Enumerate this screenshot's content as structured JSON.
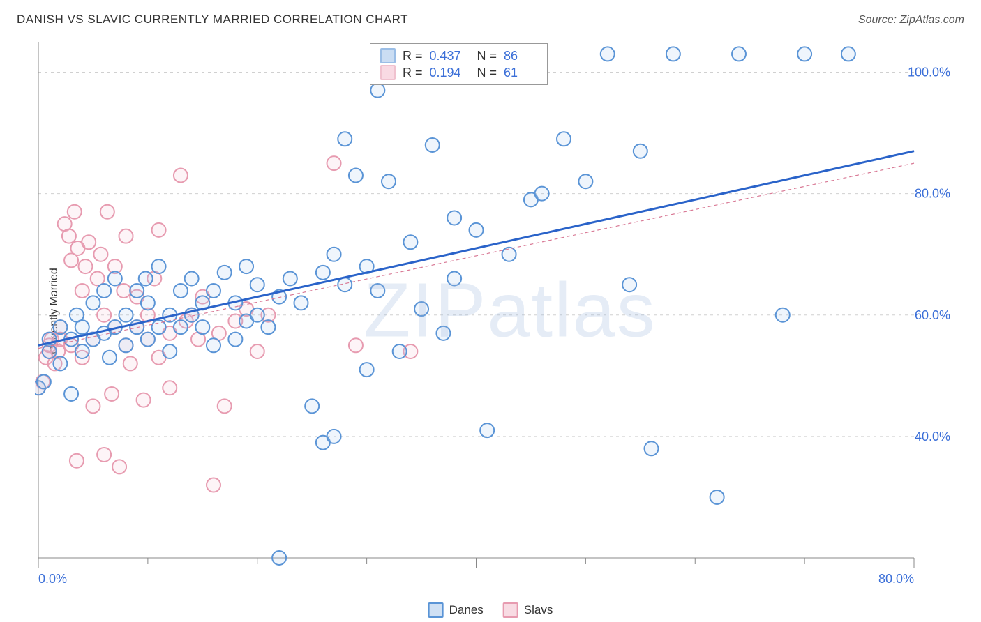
{
  "title": "DANISH VS SLAVIC CURRENTLY MARRIED CORRELATION CHART",
  "source": "Source: ZipAtlas.com",
  "ylabel": "Currently Married",
  "watermark": "ZIPatlas",
  "chart": {
    "type": "scatter",
    "background_color": "#ffffff",
    "grid_color": "#d0d0d0",
    "axis_color": "#888888",
    "tick_label_color": "#3b6fd8",
    "tick_fontsize": 18,
    "xlim": [
      0,
      80
    ],
    "ylim": [
      20,
      105
    ],
    "x_ticks_major": [
      0,
      40,
      80
    ],
    "x_ticks_minor": [
      10,
      20,
      30,
      50,
      60,
      70
    ],
    "x_tick_labels": {
      "0": "0.0%",
      "80": "80.0%"
    },
    "y_gridlines": [
      40,
      60,
      80,
      100
    ],
    "y_tick_labels": {
      "40": "40.0%",
      "60": "60.0%",
      "80": "80.0%",
      "100": "100.0%"
    },
    "marker_radius": 10,
    "marker_stroke_width": 2,
    "marker_fill_opacity": 0.18,
    "regression_width_primary": 3,
    "regression_width_secondary": 1.2,
    "series": [
      {
        "name": "Danes",
        "color_stroke": "#5a94d6",
        "color_fill": "#a7c7ec",
        "regression_color": "#2a63c9",
        "regression_dash": "none",
        "regression": {
          "x0": 0,
          "y0": 55,
          "x1": 80,
          "y1": 87
        },
        "stats": {
          "R": "0.437",
          "N": "86"
        },
        "points": [
          [
            0,
            48
          ],
          [
            0.5,
            49
          ],
          [
            1,
            54
          ],
          [
            1,
            56
          ],
          [
            2,
            58
          ],
          [
            2,
            52
          ],
          [
            3,
            47
          ],
          [
            3,
            56
          ],
          [
            3.5,
            60
          ],
          [
            4,
            54
          ],
          [
            4,
            58
          ],
          [
            5,
            56
          ],
          [
            5,
            62
          ],
          [
            6,
            57
          ],
          [
            6,
            64
          ],
          [
            6.5,
            53
          ],
          [
            7,
            66
          ],
          [
            7,
            58
          ],
          [
            8,
            55
          ],
          [
            8,
            60
          ],
          [
            9,
            58
          ],
          [
            9,
            64
          ],
          [
            9.8,
            66
          ],
          [
            10,
            56
          ],
          [
            10,
            62
          ],
          [
            11,
            58
          ],
          [
            11,
            68
          ],
          [
            12,
            60
          ],
          [
            12,
            54
          ],
          [
            13,
            64
          ],
          [
            13,
            58
          ],
          [
            14,
            60
          ],
          [
            14,
            66
          ],
          [
            15,
            62
          ],
          [
            15,
            58
          ],
          [
            16,
            55
          ],
          [
            16,
            64
          ],
          [
            17,
            67
          ],
          [
            18,
            56
          ],
          [
            18,
            62
          ],
          [
            19,
            68
          ],
          [
            19,
            59
          ],
          [
            20,
            60
          ],
          [
            20,
            65
          ],
          [
            21,
            58
          ],
          [
            22,
            63
          ],
          [
            22,
            20
          ],
          [
            23,
            66
          ],
          [
            24,
            62
          ],
          [
            25,
            45
          ],
          [
            26,
            67
          ],
          [
            26,
            39
          ],
          [
            27,
            40
          ],
          [
            27,
            70
          ],
          [
            28,
            65
          ],
          [
            29,
            83
          ],
          [
            30,
            51
          ],
          [
            30,
            68
          ],
          [
            31,
            64
          ],
          [
            31,
            97
          ],
          [
            32,
            82
          ],
          [
            33,
            54
          ],
          [
            34,
            72
          ],
          [
            35,
            61
          ],
          [
            36,
            88
          ],
          [
            37,
            57
          ],
          [
            38,
            76
          ],
          [
            38,
            66
          ],
          [
            40,
            74
          ],
          [
            41,
            41
          ],
          [
            43,
            70
          ],
          [
            45,
            79
          ],
          [
            46,
            80
          ],
          [
            48,
            89
          ],
          [
            50,
            82
          ],
          [
            52,
            103
          ],
          [
            54,
            65
          ],
          [
            55,
            87
          ],
          [
            56,
            38
          ],
          [
            58,
            103
          ],
          [
            62,
            30
          ],
          [
            64,
            103
          ],
          [
            68,
            60
          ],
          [
            70,
            103
          ],
          [
            74,
            103
          ],
          [
            28,
            89
          ]
        ]
      },
      {
        "name": "Slavs",
        "color_stroke": "#e79bb0",
        "color_fill": "#f6c3d2",
        "regression_color": "#d97a96",
        "regression_dash": "5,4",
        "regression": {
          "x0": 0,
          "y0": 54.5,
          "x1": 80,
          "y1": 85
        },
        "stats": {
          "R": "0.194",
          "N": "61"
        },
        "points": [
          [
            0,
            48
          ],
          [
            0.4,
            49
          ],
          [
            0.7,
            53
          ],
          [
            1,
            54
          ],
          [
            1,
            55
          ],
          [
            1.2,
            56
          ],
          [
            1.5,
            52
          ],
          [
            1.8,
            54
          ],
          [
            2,
            58
          ],
          [
            2,
            56
          ],
          [
            2.4,
            75
          ],
          [
            2.8,
            73
          ],
          [
            3,
            55
          ],
          [
            3,
            69
          ],
          [
            3.3,
            77
          ],
          [
            3.5,
            36
          ],
          [
            3.6,
            71
          ],
          [
            4,
            53
          ],
          [
            4,
            64
          ],
          [
            4.3,
            68
          ],
          [
            4.6,
            72
          ],
          [
            5,
            56
          ],
          [
            5,
            45
          ],
          [
            5.4,
            66
          ],
          [
            5.7,
            70
          ],
          [
            6,
            37
          ],
          [
            6,
            60
          ],
          [
            6.3,
            77
          ],
          [
            6.7,
            47
          ],
          [
            7,
            58
          ],
          [
            7,
            68
          ],
          [
            7.4,
            35
          ],
          [
            7.8,
            64
          ],
          [
            8,
            55
          ],
          [
            8,
            73
          ],
          [
            8.4,
            52
          ],
          [
            9,
            58
          ],
          [
            9,
            63
          ],
          [
            9.6,
            46
          ],
          [
            10,
            60
          ],
          [
            10,
            56
          ],
          [
            10.6,
            66
          ],
          [
            11,
            74
          ],
          [
            11,
            53
          ],
          [
            12,
            57
          ],
          [
            12,
            48
          ],
          [
            13,
            83
          ],
          [
            13.5,
            59
          ],
          [
            14,
            60
          ],
          [
            14.6,
            56
          ],
          [
            15,
            63
          ],
          [
            16,
            32
          ],
          [
            16.5,
            57
          ],
          [
            17,
            45
          ],
          [
            18,
            59
          ],
          [
            19,
            61
          ],
          [
            20,
            54
          ],
          [
            21,
            60
          ],
          [
            27,
            85
          ],
          [
            29,
            55
          ],
          [
            34,
            54
          ]
        ]
      }
    ],
    "bottom_legend": [
      {
        "label": "Danes",
        "stroke": "#5a94d6",
        "fill": "#cfe0f4"
      },
      {
        "label": "Slavs",
        "stroke": "#e79bb0",
        "fill": "#f8dbe3"
      }
    ]
  }
}
